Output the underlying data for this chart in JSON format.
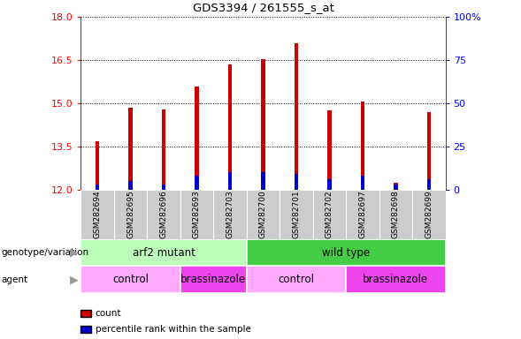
{
  "title": "GDS3394 / 261555_s_at",
  "samples": [
    "GSM282694",
    "GSM282695",
    "GSM282696",
    "GSM282693",
    "GSM282703",
    "GSM282700",
    "GSM282701",
    "GSM282702",
    "GSM282697",
    "GSM282698",
    "GSM282699"
  ],
  "count_values": [
    13.7,
    14.85,
    14.8,
    15.6,
    16.35,
    16.55,
    17.1,
    14.75,
    15.05,
    12.25,
    14.7
  ],
  "percentile_values": [
    3,
    5,
    3,
    8,
    10,
    10,
    9,
    6,
    8,
    3,
    6
  ],
  "ymin": 12,
  "ymax": 18,
  "yticks_left": [
    12,
    13.5,
    15,
    16.5,
    18
  ],
  "yticks_right": [
    0,
    25,
    50,
    75,
    100
  ],
  "bar_color": "#cc0000",
  "pct_color": "#0000cc",
  "bar_width": 0.12,
  "bg_color": "#ffffff",
  "annotation_row1_groups": [
    {
      "label": "arf2 mutant",
      "start": 0,
      "end": 4,
      "color": "#bbffbb"
    },
    {
      "label": "wild type",
      "start": 5,
      "end": 10,
      "color": "#44cc44"
    }
  ],
  "annotation_row2_groups": [
    {
      "label": "control",
      "start": 0,
      "end": 2,
      "color": "#ffaaff"
    },
    {
      "label": "brassinazole",
      "start": 3,
      "end": 4,
      "color": "#ee44ee"
    },
    {
      "label": "control",
      "start": 5,
      "end": 7,
      "color": "#ffaaff"
    },
    {
      "label": "brassinazole",
      "start": 8,
      "end": 10,
      "color": "#ee44ee"
    }
  ],
  "legend_items": [
    {
      "label": "count",
      "color": "#cc0000"
    },
    {
      "label": "percentile rank within the sample",
      "color": "#0000cc"
    }
  ],
  "row1_label": "genotype/variation",
  "row2_label": "agent",
  "xtick_bg": "#cccccc",
  "spine_color": "#888888"
}
